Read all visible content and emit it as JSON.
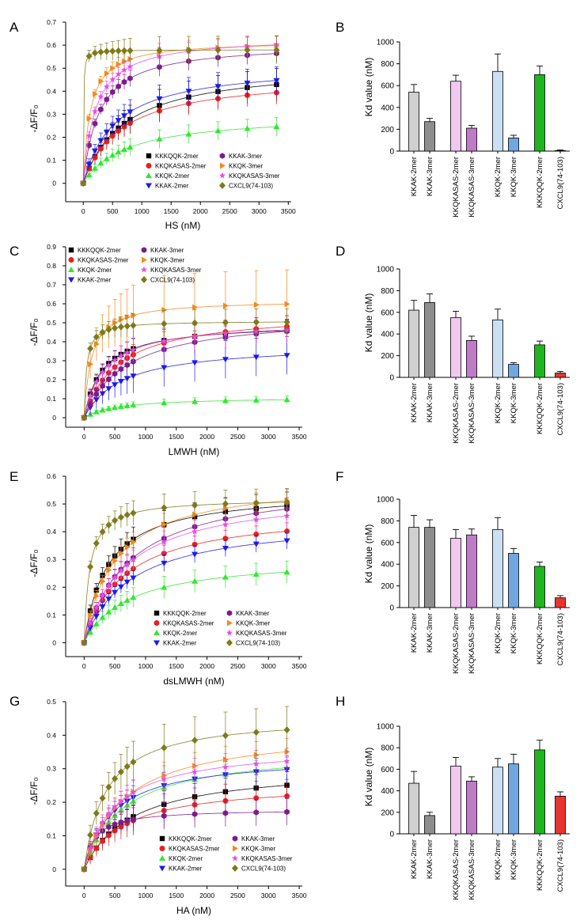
{
  "colors": {
    "KKKQQK-2mer": "#000000",
    "KKQKASAS-2mer": "#e8201c",
    "KKQK-2mer": "#33e633",
    "KKAK-2mer": "#1a1aee",
    "KKAK-3mer": "#7b1c8e",
    "KKQK-3mer": "#f28a1e",
    "KKQKASAS-3mer": "#e84ce8",
    "CXCL9(74-103)": "#7d7a1a"
  },
  "markers": {
    "KKKQQK-2mer": "square",
    "KKQKASAS-2mer": "circle",
    "KKQK-2mer": "triangle-up",
    "KKAK-2mer": "triangle-down",
    "KKAK-3mer": "hexagon",
    "KKQK-3mer": "triangle-right",
    "KKQKASAS-3mer": "star",
    "CXCL9(74-103)": "diamond"
  },
  "bar_colors": [
    "#d0d0d0",
    "#8e8e8e",
    "#f0c8f0",
    "#c07ac8",
    "#cce0f5",
    "#6fa7de",
    "#1fb51f",
    "#e8342e"
  ],
  "chart_data": [
    {
      "panel": "A",
      "type": "scatter",
      "subtype": "binding-curve",
      "xlabel": "HS (nM)",
      "ylabel": "-ΔF/F₀",
      "xlim": [
        -300,
        3550
      ],
      "ylim": [
        -0.08,
        0.7
      ],
      "xticks": [
        "0",
        "500",
        "1000",
        "1500",
        "2000",
        "2500",
        "3000",
        "3500"
      ],
      "yticks": [
        "0",
        "0.1",
        "0.2",
        "0.3",
        "0.4",
        "0.5",
        "0.6",
        "0.7"
      ],
      "x": [
        0,
        100,
        200,
        300,
        400,
        500,
        600,
        700,
        800,
        1300,
        1800,
        2300,
        2800,
        3300
      ],
      "legend": [
        "KKKQQK-2mer",
        "KKQKASAS-2mer",
        "KKQK-2mer",
        "KKAK-2mer",
        "KKAK-3mer",
        "KKQK-3mer",
        "KKQKASAS-3mer",
        "CXCL9(74-103)"
      ],
      "series": [
        {
          "name": "KKKQQK-2mer",
          "bmax": 0.52,
          "kd": 700,
          "err": 0.07
        },
        {
          "name": "KKQKASAS-2mer",
          "bmax": 0.47,
          "kd": 640,
          "err": 0.05
        },
        {
          "name": "KKQK-2mer",
          "bmax": 0.3,
          "kd": 730,
          "err": 0.04
        },
        {
          "name": "KKAK-2mer",
          "bmax": 0.52,
          "kd": 540,
          "err": 0.06
        },
        {
          "name": "KKAK-3mer",
          "bmax": 0.61,
          "kd": 270,
          "err": 0.04
        },
        {
          "name": "KKQK-3mer",
          "bmax": 0.62,
          "kd": 120,
          "err": 0.04
        },
        {
          "name": "KKQKASAS-3mer",
          "bmax": 0.64,
          "kd": 210,
          "err": 0.04
        },
        {
          "name": "CXCL9(74-103)",
          "bmax": 0.58,
          "kd": 5,
          "err": 0.06
        }
      ]
    },
    {
      "panel": "B",
      "type": "bar",
      "ylabel": "Kd value (nM)",
      "ylim": [
        0,
        1000
      ],
      "yticks": [
        "0",
        "200",
        "400",
        "600",
        "800",
        "1000"
      ],
      "categories": [
        "KKAK-2mer",
        "KKAK-3mer",
        "KKQKASAS-2mer",
        "KKQKASAS-3mer",
        "KKQK-2mer",
        "KKQK-3mer",
        "KKKQQK-2mer",
        "CXCL9(74-103)"
      ],
      "values": [
        540,
        270,
        640,
        210,
        730,
        120,
        700,
        5
      ],
      "errors": [
        70,
        30,
        55,
        25,
        160,
        25,
        80,
        5
      ]
    },
    {
      "panel": "C",
      "type": "scatter",
      "subtype": "binding-curve",
      "xlabel": "LMWH (nM)",
      "ylabel": "-ΔF/F₀",
      "xlim": [
        -300,
        3550
      ],
      "ylim": [
        -0.05,
        0.9
      ],
      "xticks": [
        "0",
        "500",
        "1000",
        "1500",
        "2000",
        "2500",
        "3000",
        "3500"
      ],
      "yticks": [
        "0",
        "0.1",
        "0.2",
        "0.3",
        "0.4",
        "0.5",
        "0.6",
        "0.7",
        "0.8",
        "0.9"
      ],
      "x": [
        0,
        100,
        200,
        300,
        400,
        500,
        600,
        700,
        800,
        1300,
        1800,
        2300,
        2800,
        3300
      ],
      "legend": [
        "KKKQQK-2mer",
        "KKAK-3mer",
        "KKQKASAS-2mer",
        "KKQK-3mer",
        "KKQK-2mer",
        "KKQKASAS-3mer",
        "KKAK-2mer",
        "CXCL9(74-103)"
      ],
      "series": [
        {
          "name": "KKKQQK-2mer",
          "bmax": 0.5,
          "kd": 300,
          "err": 0.06
        },
        {
          "name": "KKQKASAS-2mer",
          "bmax": 0.56,
          "kd": 550,
          "err": 0.06
        },
        {
          "name": "KKQK-2mer",
          "bmax": 0.11,
          "kd": 530,
          "err": 0.02
        },
        {
          "name": "KKAK-2mer",
          "bmax": 0.39,
          "kd": 620,
          "err": 0.1
        },
        {
          "name": "KKAK-3mer",
          "bmax": 0.55,
          "kd": 690,
          "err": 0.06
        },
        {
          "name": "KKQK-3mer",
          "bmax": 0.62,
          "kd": 120,
          "err": 0.18
        },
        {
          "name": "KKQKASAS-3mer",
          "bmax": 0.51,
          "kd": 340,
          "err": 0.07
        },
        {
          "name": "CXCL9(74-103)",
          "bmax": 0.51,
          "kd": 40,
          "err": 0.07
        }
      ]
    },
    {
      "panel": "D",
      "type": "bar",
      "ylabel": "Kd value (nM)",
      "ylim": [
        0,
        1000
      ],
      "yticks": [
        "0",
        "200",
        "400",
        "600",
        "800",
        "1000"
      ],
      "categories": [
        "KKAK-2mer",
        "KKAK-3mer",
        "KKQKASAS-2mer",
        "KKQKASAS-3mer",
        "KKQK-2mer",
        "KKQK-3mer",
        "KKKQQK-2mer",
        "CXCL9(74-103)"
      ],
      "values": [
        620,
        690,
        550,
        340,
        530,
        120,
        300,
        40
      ],
      "errors": [
        90,
        80,
        60,
        40,
        100,
        15,
        35,
        15
      ]
    },
    {
      "panel": "E",
      "type": "scatter",
      "subtype": "binding-curve",
      "xlabel": "dsLMWH (nM)",
      "ylabel": "-ΔF/F₀",
      "xlim": [
        -300,
        3550
      ],
      "ylim": [
        -0.05,
        0.6
      ],
      "xticks": [
        "0",
        "500",
        "1000",
        "1500",
        "2000",
        "2500",
        "3000",
        "3500"
      ],
      "yticks": [
        "0",
        "0.1",
        "0.2",
        "0.3",
        "0.4",
        "0.5",
        "0.6"
      ],
      "x": [
        0,
        100,
        200,
        300,
        400,
        500,
        600,
        700,
        800,
        1300,
        1800,
        2300,
        2800,
        3300
      ],
      "legend": [
        "KKKQQK-2mer",
        "KKAK-3mer",
        "KKQKASAS-2mer",
        "KKQK-3mer",
        "KKQK-2mer",
        "KKQKASAS-3mer",
        "KKAK-2mer",
        "CXCL9(74-103)"
      ],
      "series": [
        {
          "name": "KKKQQK-2mer",
          "bmax": 0.55,
          "kd": 380,
          "err": 0.05
        },
        {
          "name": "KKQKASAS-2mer",
          "bmax": 0.48,
          "kd": 640,
          "err": 0.03
        },
        {
          "name": "KKQK-2mer",
          "bmax": 0.31,
          "kd": 720,
          "err": 0.04
        },
        {
          "name": "KKAK-2mer",
          "bmax": 0.45,
          "kd": 740,
          "err": 0.03
        },
        {
          "name": "KKAK-3mer",
          "bmax": 0.59,
          "kd": 740,
          "err": 0.04
        },
        {
          "name": "KKQK-3mer",
          "bmax": 0.59,
          "kd": 500,
          "err": 0.04
        },
        {
          "name": "KKQKASAS-3mer",
          "bmax": 0.55,
          "kd": 670,
          "err": 0.04
        },
        {
          "name": "CXCL9(74-103)",
          "bmax": 0.52,
          "kd": 90,
          "err": 0.05
        }
      ]
    },
    {
      "panel": "F",
      "type": "bar",
      "ylabel": "Kd value (nM)",
      "ylim": [
        0,
        1000
      ],
      "yticks": [
        "0",
        "200",
        "400",
        "600",
        "800",
        "1000"
      ],
      "categories": [
        "KKAK-2mer",
        "KKAK-3mer",
        "KKQKASAS-2mer",
        "KKQKASAS-3mer",
        "KKQK-2mer",
        "KKQK-3mer",
        "KKKQQK-2mer",
        "CXCL9(74-103)"
      ],
      "values": [
        740,
        740,
        640,
        670,
        720,
        500,
        380,
        90
      ],
      "errors": [
        110,
        70,
        80,
        55,
        110,
        45,
        40,
        20
      ]
    },
    {
      "panel": "G",
      "type": "scatter",
      "subtype": "binding-curve",
      "xlabel": "HA (nM)",
      "ylabel": "-ΔF/F₀",
      "xlim": [
        -300,
        3550
      ],
      "ylim": [
        -0.05,
        0.5
      ],
      "xticks": [
        "0",
        "500",
        "1000",
        "1500",
        "2000",
        "2500",
        "3000",
        "3500"
      ],
      "yticks": [
        "0",
        "0.1",
        "0.2",
        "0.3",
        "0.4",
        "0.5"
      ],
      "x": [
        0,
        100,
        200,
        300,
        400,
        500,
        600,
        700,
        800,
        1300,
        1800,
        2300,
        2800,
        3300
      ],
      "legend": [
        "KKKQQK-2mer",
        "KKAK-3mer",
        "KKQKASAS-2mer",
        "KKQK-3mer",
        "KKQK-2mer",
        "KKQKASAS-3mer",
        "KKAK-2mer",
        "CXCL9(74-103)"
      ],
      "series": [
        {
          "name": "KKKQQK-2mer",
          "bmax": 0.31,
          "kd": 780,
          "err": 0.04
        },
        {
          "name": "KKQKASAS-2mer",
          "bmax": 0.26,
          "kd": 630,
          "err": 0.05
        },
        {
          "name": "KKQK-2mer",
          "bmax": 0.36,
          "kd": 620,
          "err": 0.03
        },
        {
          "name": "KKAK-2mer",
          "bmax": 0.34,
          "kd": 470,
          "err": 0.04
        },
        {
          "name": "KKAK-3mer",
          "bmax": 0.18,
          "kd": 170,
          "err": 0.04
        },
        {
          "name": "KKQK-3mer",
          "bmax": 0.42,
          "kd": 650,
          "err": 0.04
        },
        {
          "name": "KKQKASAS-3mer",
          "bmax": 0.37,
          "kd": 490,
          "err": 0.04
        },
        {
          "name": "CXCL9(74-103)",
          "bmax": 0.46,
          "kd": 350,
          "err": 0.07
        }
      ]
    },
    {
      "panel": "H",
      "type": "bar",
      "ylabel": "Kd value (nM)",
      "ylim": [
        0,
        1000
      ],
      "yticks": [
        "0",
        "200",
        "400",
        "600",
        "800",
        "1000"
      ],
      "categories": [
        "KKAK-2mer",
        "KKAK-3mer",
        "KKQKASAS-2mer",
        "KKQKASAS-3mer",
        "KKQK-2mer",
        "KKQK-3mer",
        "KKKQQK-2mer",
        "CXCL9(74-103)"
      ],
      "values": [
        470,
        170,
        630,
        490,
        620,
        650,
        780,
        350
      ],
      "errors": [
        110,
        30,
        80,
        40,
        80,
        90,
        90,
        40
      ]
    }
  ]
}
